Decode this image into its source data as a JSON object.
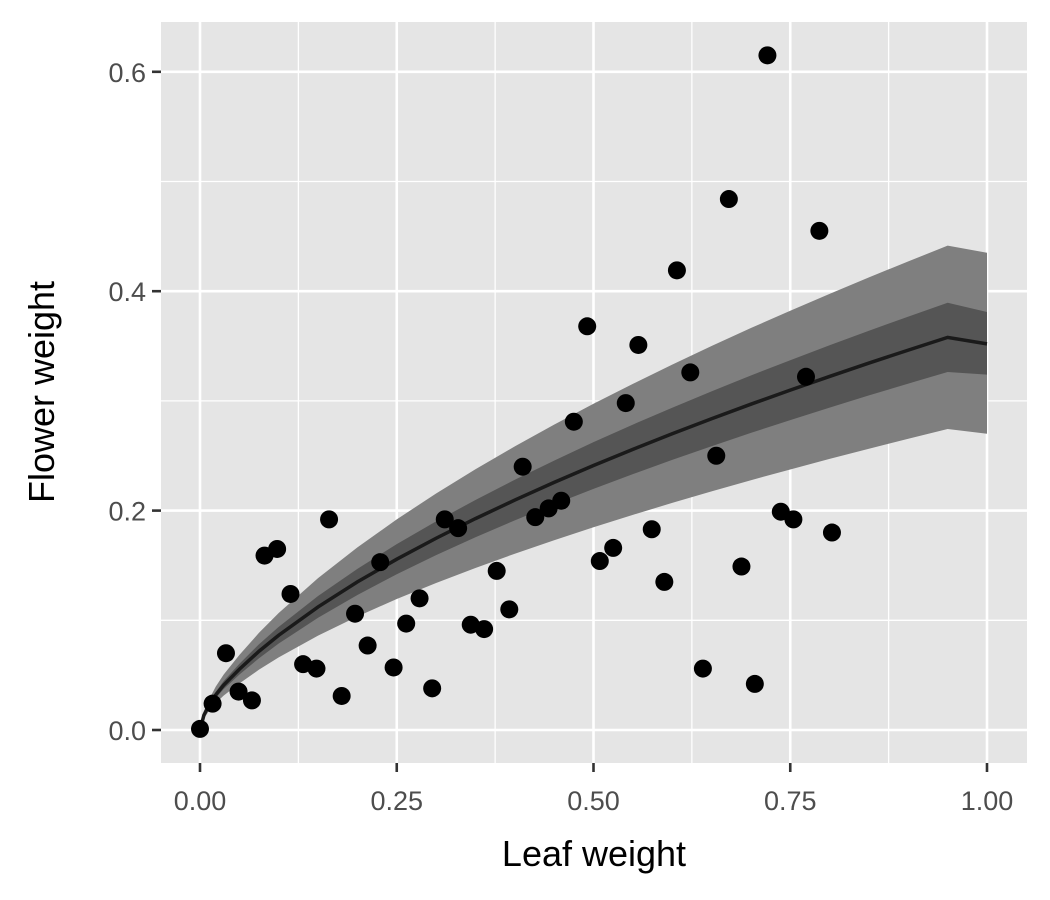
{
  "chart_data": {
    "type": "scatter",
    "xlabel": "Leaf weight",
    "ylabel": "Flower weight",
    "xlim": [
      -0.1,
      1.05
    ],
    "ylim": [
      -0.03,
      0.645
    ],
    "x_ticks": [
      0.0,
      0.25,
      0.5,
      0.75,
      1.0
    ],
    "x_tick_labels": [
      "0.00",
      "0.25",
      "0.50",
      "0.75",
      "1.00"
    ],
    "y_ticks": [
      0.0,
      0.2,
      0.4,
      0.6
    ],
    "y_tick_labels": [
      "0.0",
      "0.2",
      "0.4",
      "0.6"
    ],
    "grid": true,
    "background": "#e5e5e5",
    "points": [
      [
        0.0,
        0.001
      ],
      [
        0.016,
        0.024
      ],
      [
        0.033,
        0.07
      ],
      [
        0.049,
        0.035
      ],
      [
        0.066,
        0.027
      ],
      [
        0.082,
        0.159
      ],
      [
        0.098,
        0.165
      ],
      [
        0.115,
        0.124
      ],
      [
        0.131,
        0.06
      ],
      [
        0.148,
        0.056
      ],
      [
        0.164,
        0.192
      ],
      [
        0.18,
        0.031
      ],
      [
        0.197,
        0.106
      ],
      [
        0.213,
        0.077
      ],
      [
        0.229,
        0.153
      ],
      [
        0.246,
        0.057
      ],
      [
        0.262,
        0.097
      ],
      [
        0.279,
        0.12
      ],
      [
        0.295,
        0.038
      ],
      [
        0.311,
        0.192
      ],
      [
        0.328,
        0.184
      ],
      [
        0.344,
        0.096
      ],
      [
        0.361,
        0.092
      ],
      [
        0.377,
        0.145
      ],
      [
        0.393,
        0.11
      ],
      [
        0.41,
        0.24
      ],
      [
        0.426,
        0.194
      ],
      [
        0.443,
        0.202
      ],
      [
        0.459,
        0.209
      ],
      [
        0.475,
        0.281
      ],
      [
        0.492,
        0.368
      ],
      [
        0.508,
        0.154
      ],
      [
        0.525,
        0.166
      ],
      [
        0.541,
        0.298
      ],
      [
        0.557,
        0.351
      ],
      [
        0.574,
        0.183
      ],
      [
        0.59,
        0.135
      ],
      [
        0.606,
        0.419
      ],
      [
        0.623,
        0.326
      ],
      [
        0.639,
        0.056
      ],
      [
        0.656,
        0.25
      ],
      [
        0.672,
        0.484
      ],
      [
        0.688,
        0.149
      ],
      [
        0.705,
        0.042
      ],
      [
        0.721,
        0.615
      ],
      [
        0.738,
        0.199
      ],
      [
        0.754,
        0.192
      ],
      [
        0.77,
        0.322
      ],
      [
        0.787,
        0.455
      ],
      [
        0.803,
        0.18
      ]
    ],
    "fit": {
      "x": [
        0,
        0.005,
        0.01,
        0.02,
        0.03,
        0.05,
        0.075,
        0.1,
        0.15,
        0.2,
        0.25,
        0.3,
        0.35,
        0.4,
        0.45,
        0.5,
        0.55,
        0.6,
        0.65,
        0.7,
        0.75,
        0.8,
        0.85,
        0.9,
        0.95,
        1.0
      ],
      "y": [
        0,
        0.0136,
        0.0209,
        0.032,
        0.0409,
        0.0554,
        0.0718,
        0.0864,
        0.1122,
        0.135,
        0.1557,
        0.1748,
        0.1927,
        0.2096,
        0.2257,
        0.2411,
        0.2558,
        0.27,
        0.2837,
        0.297,
        0.3098,
        0.3223,
        0.3345,
        0.3463,
        0.3579,
        0.352
      ],
      "inner_band": {
        "lower": [
          0,
          0.0124,
          0.0191,
          0.0292,
          0.0373,
          0.0505,
          0.0654,
          0.0788,
          0.1023,
          0.1231,
          0.142,
          0.1594,
          0.1757,
          0.1911,
          0.2058,
          0.2198,
          0.2332,
          0.2462,
          0.2587,
          0.2708,
          0.2825,
          0.2939,
          0.305,
          0.3158,
          0.3263,
          0.324
        ],
        "upper": [
          0,
          0.0148,
          0.0227,
          0.0348,
          0.0445,
          0.0603,
          0.0782,
          0.094,
          0.1221,
          0.1469,
          0.1694,
          0.1902,
          0.2097,
          0.2281,
          0.2456,
          0.2624,
          0.2784,
          0.2938,
          0.3087,
          0.3232,
          0.3371,
          0.3507,
          0.364,
          0.3768,
          0.3895,
          0.381
        ]
      },
      "outer_band": {
        "lower": [
          0,
          0.0104,
          0.016,
          0.0245,
          0.0313,
          0.0424,
          0.055,
          0.0662,
          0.086,
          0.1035,
          0.1194,
          0.134,
          0.1477,
          0.1607,
          0.173,
          0.1848,
          0.1961,
          0.207,
          0.2175,
          0.2277,
          0.2375,
          0.2471,
          0.2564,
          0.2655,
          0.2744,
          0.27
        ],
        "upper": [
          0,
          0.0168,
          0.0258,
          0.0395,
          0.0505,
          0.0684,
          0.0886,
          0.1066,
          0.1384,
          0.1665,
          0.192,
          0.2156,
          0.2377,
          0.2585,
          0.2784,
          0.2974,
          0.3155,
          0.3331,
          0.35,
          0.3664,
          0.3822,
          0.3976,
          0.4126,
          0.4272,
          0.4415,
          0.435
        ]
      }
    }
  }
}
